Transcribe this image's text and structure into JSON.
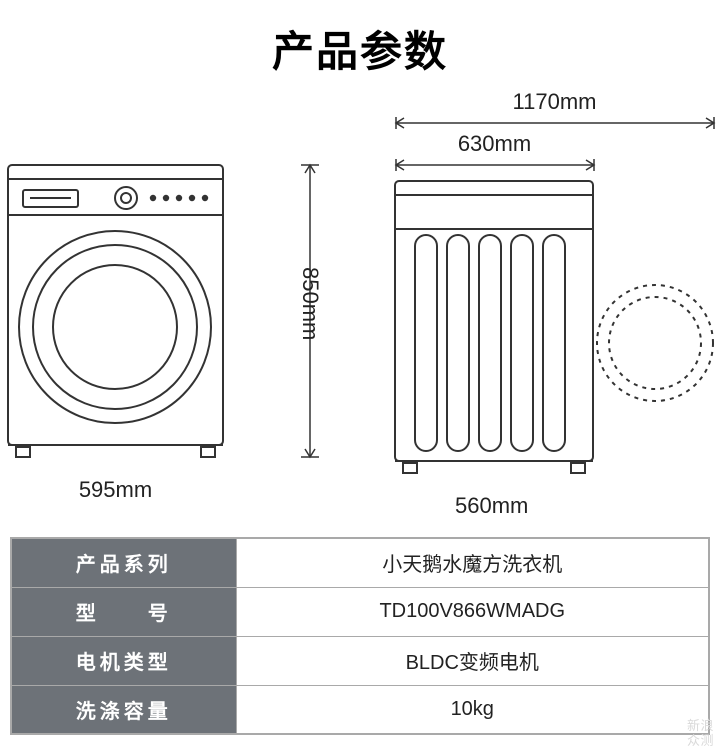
{
  "title": "产品参数",
  "dimensions": {
    "front_width": "595mm",
    "height": "850mm",
    "side_bottom": "560mm",
    "side_body_top": "630mm",
    "side_total_top": "1170mm"
  },
  "specs": {
    "rows": [
      {
        "key": "产品系列",
        "value": "小天鹅水魔方洗衣机"
      },
      {
        "key": "型　　号",
        "value": "TD100V866WMADG"
      },
      {
        "key": "电机类型",
        "value": "BLDC变频电机"
      },
      {
        "key": "洗涤容量",
        "value": "10kg"
      }
    ]
  },
  "watermark": {
    "line1": "新浪",
    "line2": "众测"
  },
  "colors": {
    "stroke": "#333333",
    "table_header_bg": "#6d7278",
    "border": "#a9a9a9"
  }
}
